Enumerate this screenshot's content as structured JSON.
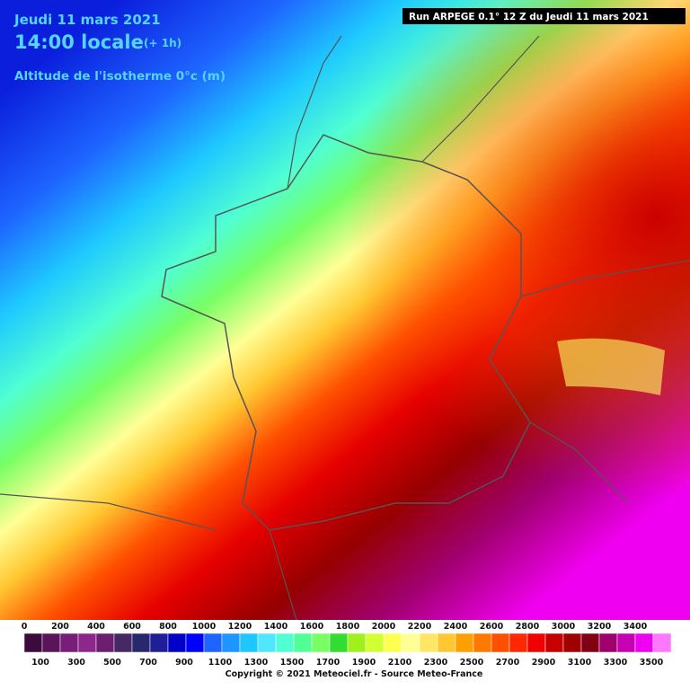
{
  "header": {
    "date": "Jeudi 11 mars 2021",
    "time": "14:00 locale",
    "offset": "(+ 1h)",
    "variable": "Altitude de l'isotherme 0°c (m)",
    "run": "Run ARPEGE 0.1° 12 Z du Jeudi 11 mars 2021"
  },
  "legend": {
    "top_labels": [
      0,
      200,
      400,
      600,
      800,
      1000,
      1200,
      1400,
      1600,
      1800,
      2000,
      2200,
      2400,
      2600,
      2800,
      3000,
      3200,
      3400
    ],
    "bottom_labels": [
      100,
      300,
      500,
      700,
      900,
      1100,
      1300,
      1500,
      1700,
      1900,
      2100,
      2300,
      2500,
      2700,
      2900,
      3100,
      3300,
      3500
    ],
    "colors": [
      "#3c0a3c",
      "#5a145a",
      "#781e78",
      "#8c288c",
      "#6e1e6e",
      "#462864",
      "#28286e",
      "#1e1e96",
      "#0000c8",
      "#0000ff",
      "#1e64ff",
      "#1e96ff",
      "#1ec8ff",
      "#50e6ff",
      "#50ffd2",
      "#50ff96",
      "#78ff64",
      "#32dc32",
      "#a0f01e",
      "#d2ff32",
      "#ffff50",
      "#ffff96",
      "#ffe664",
      "#ffc832",
      "#ffa000",
      "#ff7800",
      "#ff5000",
      "#ff2800",
      "#f00000",
      "#c80000",
      "#a00000",
      "#820014",
      "#a0006e",
      "#c800b4",
      "#f000f0",
      "#ff78ff"
    ]
  },
  "footer": {
    "copyright": "Copyright © 2021 Meteociel.fr - Source Meteo-France"
  }
}
